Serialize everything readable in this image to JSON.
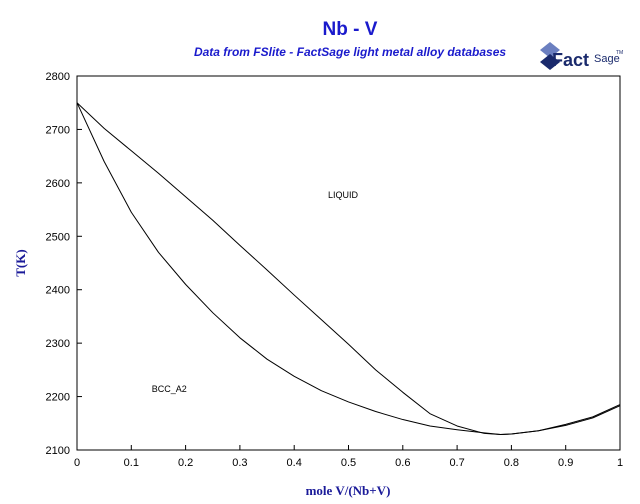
{
  "chart_data": {
    "type": "line",
    "title": "Nb - V",
    "subtitle": "Data from FSlite - FactSage light metal alloy databases",
    "xlabel": "mole V/(Nb+V)",
    "ylabel": "T(K)",
    "xlim": [
      0,
      1
    ],
    "ylim": [
      2100,
      2800
    ],
    "xticks": [
      0,
      0.1,
      0.2,
      0.3,
      0.4,
      0.5,
      0.6,
      0.7,
      0.8,
      0.9,
      1
    ],
    "yticks": [
      2100,
      2200,
      2300,
      2400,
      2500,
      2600,
      2700,
      2800
    ],
    "grid": false,
    "series": [
      {
        "values_x": [
          0,
          0.05,
          0.1,
          0.15,
          0.2,
          0.25,
          0.3,
          0.35,
          0.4,
          0.45,
          0.5,
          0.55,
          0.6,
          0.65,
          0.7,
          0.75,
          0.78,
          0.8,
          0.85,
          0.9,
          0.95,
          1.0
        ],
        "values_y": [
          2750,
          2702,
          2660,
          2618,
          2574,
          2530,
          2483,
          2437,
          2390,
          2344,
          2298,
          2250,
          2208,
          2168,
          2145,
          2131,
          2129,
          2130,
          2136,
          2148,
          2162,
          2185
        ]
      },
      {
        "values_x": [
          0,
          0.05,
          0.1,
          0.15,
          0.2,
          0.25,
          0.3,
          0.35,
          0.4,
          0.45,
          0.5,
          0.55,
          0.6,
          0.65,
          0.7,
          0.75,
          0.78,
          0.8,
          0.85,
          0.9,
          0.95,
          1.0
        ],
        "values_y": [
          2750,
          2640,
          2545,
          2470,
          2410,
          2357,
          2310,
          2270,
          2238,
          2211,
          2190,
          2172,
          2157,
          2145,
          2138,
          2132,
          2129,
          2130,
          2136,
          2146,
          2160,
          2183
        ]
      }
    ],
    "annotations": [
      {
        "text": "LIQUID",
        "x": 0.49,
        "y": 2572
      },
      {
        "text": "BCC_A2",
        "x": 0.17,
        "y": 2209
      }
    ]
  },
  "logo": {
    "text": "Fact",
    "suffix": "Sage",
    "mark": "TM",
    "colors": {
      "primary": "#1a2a6c",
      "accent": "#6b7fc0"
    }
  },
  "colors": {
    "title": "#1a1acc",
    "axis_title": "#1a1a99",
    "curve": "#000000"
  }
}
